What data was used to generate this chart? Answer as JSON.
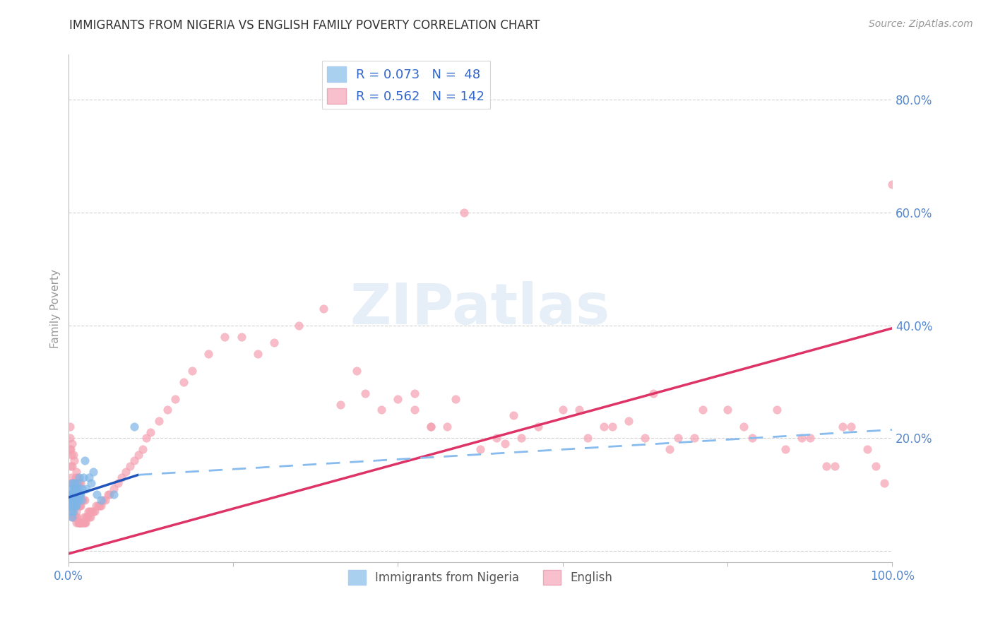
{
  "title": "IMMIGRANTS FROM NIGERIA VS ENGLISH FAMILY POVERTY CORRELATION CHART",
  "source": "Source: ZipAtlas.com",
  "ylabel_label": "Family Poverty",
  "xlim": [
    0.0,
    1.0
  ],
  "ylim": [
    -0.02,
    0.88
  ],
  "background_color": "#FFFFFF",
  "grid_color": "#CCCCCC",
  "title_color": "#333333",
  "tick_label_color": "#5588CC",
  "watermark": "ZIPatlas",
  "series_nigeria": {
    "color": "#7EB6E8",
    "edge_color": "#5599DD",
    "alpha": 0.7,
    "marker_size": 70,
    "x": [
      0.002,
      0.003,
      0.003,
      0.004,
      0.004,
      0.004,
      0.004,
      0.005,
      0.005,
      0.005,
      0.005,
      0.005,
      0.006,
      0.006,
      0.006,
      0.006,
      0.007,
      0.007,
      0.007,
      0.007,
      0.008,
      0.008,
      0.008,
      0.009,
      0.009,
      0.01,
      0.01,
      0.01,
      0.011,
      0.011,
      0.012,
      0.012,
      0.013,
      0.013,
      0.014,
      0.015,
      0.016,
      0.017,
      0.018,
      0.02,
      0.022,
      0.025,
      0.028,
      0.03,
      0.035,
      0.04,
      0.055,
      0.08
    ],
    "y": [
      0.08,
      0.09,
      0.1,
      0.07,
      0.09,
      0.1,
      0.11,
      0.06,
      0.08,
      0.09,
      0.1,
      0.12,
      0.07,
      0.09,
      0.1,
      0.11,
      0.08,
      0.09,
      0.1,
      0.12,
      0.09,
      0.1,
      0.11,
      0.08,
      0.1,
      0.08,
      0.09,
      0.11,
      0.09,
      0.12,
      0.09,
      0.11,
      0.1,
      0.13,
      0.1,
      0.1,
      0.09,
      0.11,
      0.13,
      0.16,
      0.11,
      0.13,
      0.12,
      0.14,
      0.1,
      0.09,
      0.1,
      0.22
    ]
  },
  "series_english": {
    "color": "#F4A0B0",
    "edge_color": "#E07090",
    "alpha": 0.7,
    "marker_size": 70,
    "x": [
      0.001,
      0.002,
      0.002,
      0.002,
      0.003,
      0.003,
      0.003,
      0.003,
      0.004,
      0.004,
      0.004,
      0.004,
      0.005,
      0.005,
      0.005,
      0.005,
      0.005,
      0.006,
      0.006,
      0.006,
      0.006,
      0.007,
      0.007,
      0.007,
      0.007,
      0.008,
      0.008,
      0.008,
      0.009,
      0.009,
      0.009,
      0.01,
      0.01,
      0.01,
      0.01,
      0.011,
      0.011,
      0.011,
      0.012,
      0.012,
      0.012,
      0.013,
      0.013,
      0.013,
      0.014,
      0.014,
      0.015,
      0.015,
      0.015,
      0.016,
      0.016,
      0.017,
      0.017,
      0.018,
      0.018,
      0.019,
      0.02,
      0.02,
      0.021,
      0.022,
      0.023,
      0.024,
      0.025,
      0.026,
      0.027,
      0.028,
      0.03,
      0.032,
      0.034,
      0.036,
      0.038,
      0.04,
      0.042,
      0.045,
      0.048,
      0.05,
      0.055,
      0.06,
      0.065,
      0.07,
      0.075,
      0.08,
      0.085,
      0.09,
      0.095,
      0.1,
      0.11,
      0.12,
      0.13,
      0.14,
      0.15,
      0.17,
      0.19,
      0.21,
      0.23,
      0.25,
      0.28,
      0.31,
      0.35,
      0.38,
      0.4,
      0.42,
      0.44,
      0.46,
      0.48,
      0.5,
      0.52,
      0.54,
      0.57,
      0.6,
      0.63,
      0.66,
      0.7,
      0.73,
      0.76,
      0.8,
      0.83,
      0.86,
      0.9,
      0.93,
      0.95,
      0.97,
      0.98,
      0.99,
      1.0,
      0.33,
      0.36,
      0.42,
      0.44,
      0.47,
      0.53,
      0.55,
      0.62,
      0.65,
      0.68,
      0.71,
      0.74,
      0.77,
      0.82,
      0.87,
      0.89,
      0.92,
      0.94
    ],
    "y": [
      0.1,
      0.18,
      0.2,
      0.22,
      0.08,
      0.12,
      0.15,
      0.18,
      0.07,
      0.1,
      0.13,
      0.17,
      0.06,
      0.09,
      0.12,
      0.15,
      0.19,
      0.06,
      0.09,
      0.12,
      0.17,
      0.06,
      0.09,
      0.12,
      0.16,
      0.06,
      0.08,
      0.12,
      0.06,
      0.09,
      0.13,
      0.05,
      0.07,
      0.1,
      0.14,
      0.06,
      0.09,
      0.13,
      0.05,
      0.08,
      0.12,
      0.05,
      0.08,
      0.12,
      0.05,
      0.08,
      0.05,
      0.08,
      0.12,
      0.05,
      0.09,
      0.05,
      0.09,
      0.05,
      0.09,
      0.06,
      0.05,
      0.09,
      0.05,
      0.06,
      0.06,
      0.07,
      0.06,
      0.07,
      0.06,
      0.07,
      0.07,
      0.07,
      0.08,
      0.08,
      0.08,
      0.08,
      0.09,
      0.09,
      0.1,
      0.1,
      0.11,
      0.12,
      0.13,
      0.14,
      0.15,
      0.16,
      0.17,
      0.18,
      0.2,
      0.21,
      0.23,
      0.25,
      0.27,
      0.3,
      0.32,
      0.35,
      0.38,
      0.38,
      0.35,
      0.37,
      0.4,
      0.43,
      0.32,
      0.25,
      0.27,
      0.25,
      0.22,
      0.22,
      0.6,
      0.18,
      0.2,
      0.24,
      0.22,
      0.25,
      0.2,
      0.22,
      0.2,
      0.18,
      0.2,
      0.25,
      0.2,
      0.25,
      0.2,
      0.15,
      0.22,
      0.18,
      0.15,
      0.12,
      0.65,
      0.26,
      0.28,
      0.28,
      0.22,
      0.27,
      0.19,
      0.2,
      0.25,
      0.22,
      0.23,
      0.28,
      0.2,
      0.25,
      0.22,
      0.18,
      0.2,
      0.15,
      0.22
    ]
  },
  "trend_nigeria": {
    "x_start": 0.0,
    "x_mid": 0.085,
    "x_end": 1.0,
    "y_start": 0.095,
    "y_mid": 0.135,
    "y_end": 0.215,
    "solid_color": "#2255BB",
    "dash_color": "#88BBEE"
  },
  "trend_english": {
    "x_start": 0.0,
    "x_end": 1.0,
    "y_start": -0.005,
    "y_end": 0.395,
    "color": "#DD3366"
  }
}
